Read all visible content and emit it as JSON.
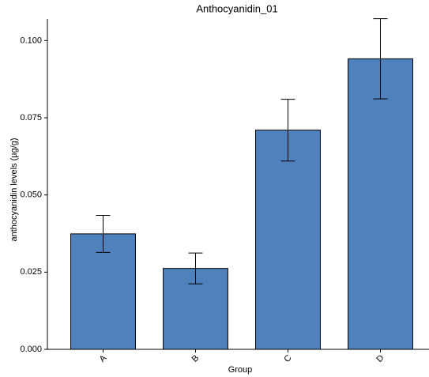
{
  "chart_data": {
    "type": "bar",
    "title": "Anthocyanidin_01",
    "x_label": "Group",
    "y_label": "anthocyanidin levels (µg/g)",
    "categories": [
      "A",
      "B",
      "C",
      "D"
    ],
    "values": [
      0.0374,
      0.0262,
      0.071,
      0.0941
    ],
    "errors": [
      0.006,
      0.005,
      0.01,
      0.013
    ],
    "color": "#4f81bd",
    "ylim": [
      0,
      0.107
    ],
    "yticks": [
      {
        "value": 0,
        "label": "0.000"
      },
      {
        "value": 0.025,
        "label": "0.025"
      },
      {
        "value": 0.05,
        "label": "0.050"
      },
      {
        "value": 0.075,
        "label": "0.075"
      },
      {
        "value": 0.1,
        "label": "0.100"
      }
    ]
  }
}
